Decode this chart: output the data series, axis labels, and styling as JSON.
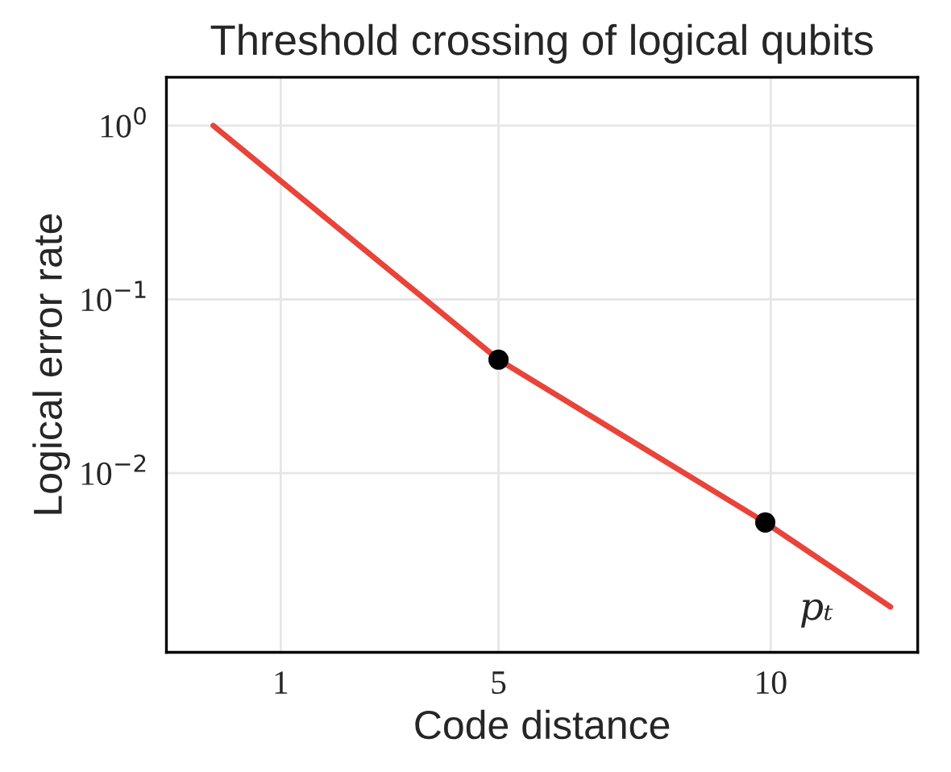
{
  "chart_data": {
    "type": "line",
    "title": "Threshold crossing of logical qubits",
    "xlabel": "Code distance",
    "ylabel": "Logical error rate",
    "series": [
      {
        "color": "#e8443a",
        "x": [
          -0.24,
          5,
          9.9,
          12.2
        ],
        "values": [
          1.0,
          0.045,
          0.0052,
          0.0017
        ]
      },
      {
        "type": "scatter",
        "marker": "circle",
        "color": "#000000",
        "x": [
          5,
          9.9
        ],
        "values": [
          0.045,
          0.0052
        ]
      }
    ],
    "log": "y",
    "xlim": [
      -1.1,
      12.7
    ],
    "xticks": [
      1,
      5,
      10
    ],
    "ylim": [
      0.00093,
      1.9
    ],
    "yticks": [
      {
        "value": 1,
        "label": "10$^{0}$"
      },
      {
        "value": 0.1,
        "label": "10$^{−1}$"
      },
      {
        "value": 0.01,
        "label": "10$^{−2}$"
      }
    ],
    "grid": true,
    "annotations": [
      "pₜ"
    ]
  }
}
